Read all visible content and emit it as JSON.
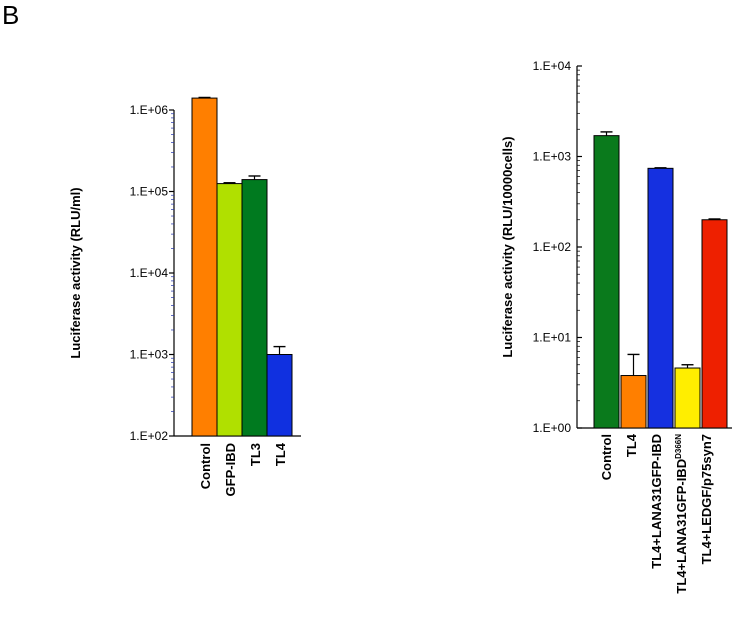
{
  "panel_label": "B",
  "chart_data": [
    {
      "type": "bar",
      "title": "",
      "xlabel": "",
      "ylabel": "Luciferase activity (RLU/ml)",
      "yscale": "log",
      "ylim": [
        100,
        1000000
      ],
      "yticks": [
        100,
        1000,
        10000,
        100000,
        1000000
      ],
      "ytick_labels": [
        "1.E+02",
        "1.E+03",
        "1.E+04",
        "1.E+05",
        "1.E+06"
      ],
      "minor_ticks": true,
      "grid": false,
      "categories": [
        {
          "text": "Control"
        },
        {
          "text": "GFP-IBD"
        },
        {
          "text": "TL3"
        },
        {
          "text": "TL4"
        }
      ],
      "values": [
        1400000,
        125000,
        140000,
        1000
      ],
      "errors": [
        25000,
        3000,
        15000,
        250
      ],
      "colors": [
        "#ff7f00",
        "#b0e000",
        "#007a1f",
        "#1030e0"
      ]
    },
    {
      "type": "bar",
      "title": "",
      "xlabel": "",
      "ylabel": "Luciferase activity (RLU/10000cells)",
      "yscale": "log",
      "ylim": [
        1,
        10000
      ],
      "yticks": [
        1,
        10,
        100,
        1000,
        10000
      ],
      "ytick_labels": [
        "1.E+00",
        "1.E+01",
        "1.E+02",
        "1.E+03",
        "1.E+04"
      ],
      "minor_ticks": true,
      "grid": false,
      "categories": [
        {
          "text": "Control"
        },
        {
          "text": "TL4"
        },
        {
          "text": "TL4+LANA31GFP-IBD"
        },
        {
          "text": "TL4+LANA31GFP-IBD",
          "sup": "D366N"
        },
        {
          "text": "TL4+LEDGF/p75syn7"
        }
      ],
      "values": [
        1700,
        3.8,
        740,
        4.6,
        200
      ],
      "errors": [
        170,
        2.7,
        10,
        0.4,
        4
      ],
      "colors": [
        "#0a7a1c",
        "#ff7f00",
        "#1530e0",
        "#ffee00",
        "#ee2000"
      ]
    }
  ]
}
